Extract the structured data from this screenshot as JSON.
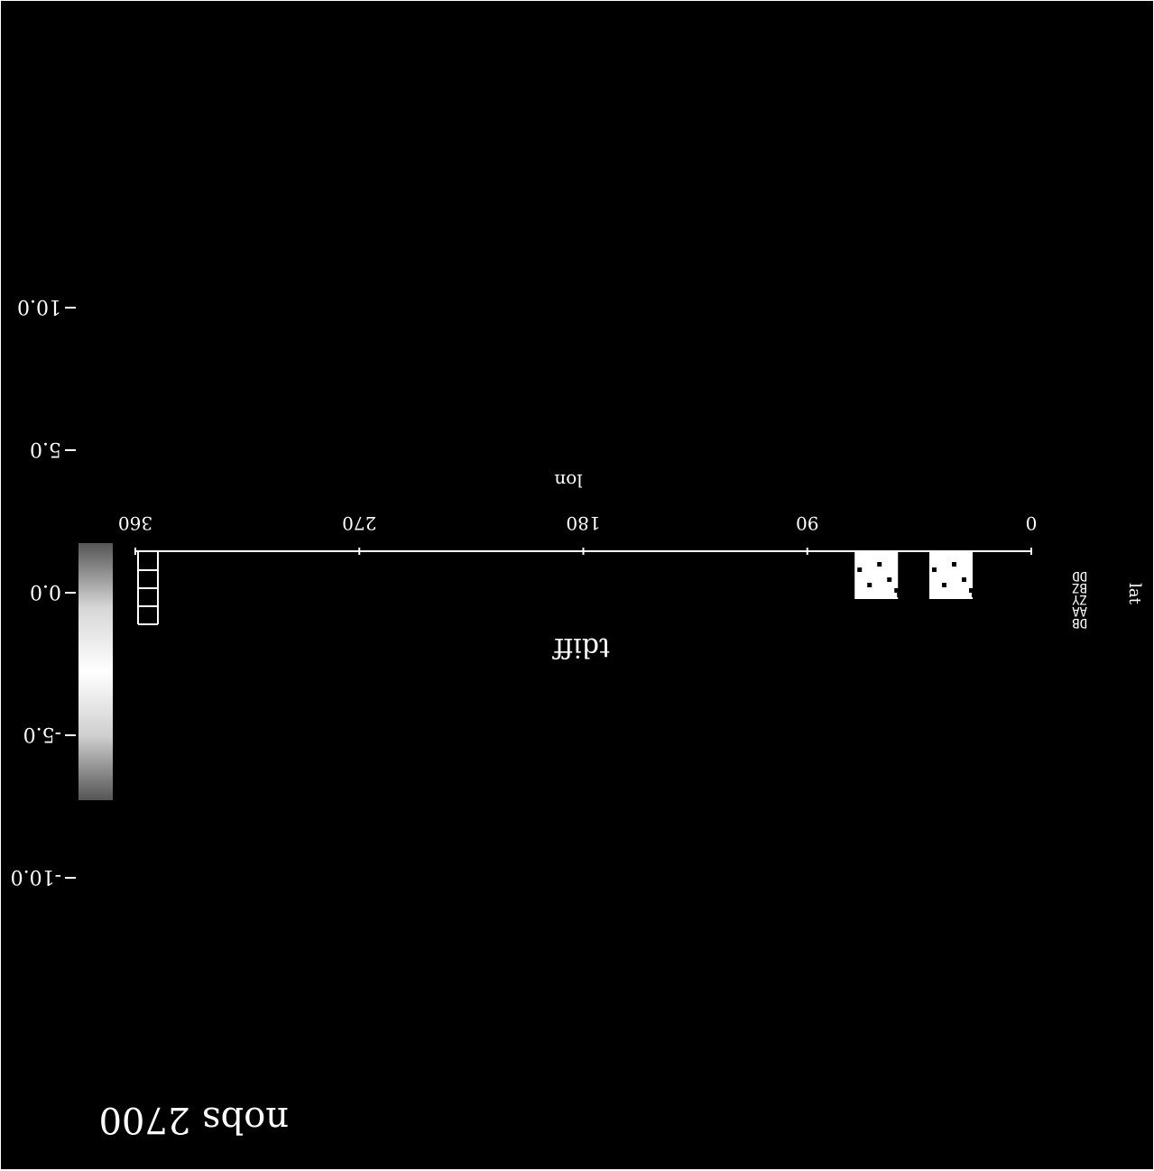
{
  "chart_data": {
    "type": "heatmap",
    "title": "tdiff",
    "xlabel": "lon",
    "ylabel": "lat",
    "x_ticks": [
      "0",
      "90",
      "180",
      "270",
      "360"
    ],
    "xlim": [
      0,
      360
    ],
    "colorbar": {
      "ticks": [
        "-10.0",
        "-5.0",
        "0.0",
        "5.0",
        "10.0"
      ],
      "range": [
        -10,
        10
      ]
    },
    "side_text": [
      "DB",
      "AA",
      "ZY",
      "BZ",
      "DD"
    ],
    "annotation": "nobs 2700",
    "cells": [
      {
        "lon": 63,
        "value": 8.5
      },
      {
        "lon": 33,
        "value": 7.5
      }
    ],
    "colors": {
      "background": "#000000",
      "foreground": "#ffffff"
    }
  }
}
